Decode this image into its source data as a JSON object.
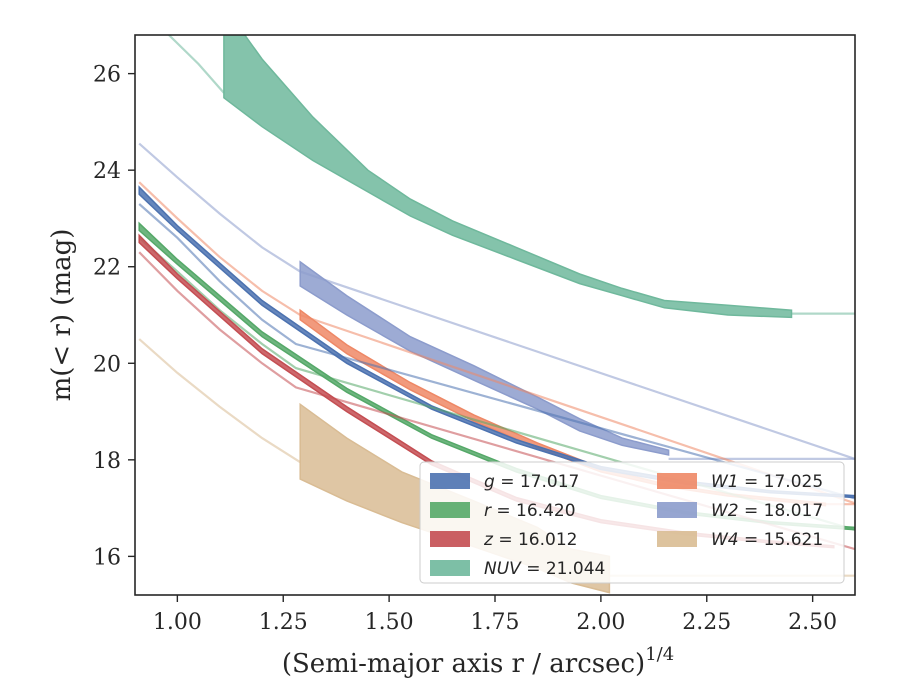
{
  "chart_data": {
    "type": "area",
    "xlabel": "(Semi-major axis r / arcsec)",
    "xlabel_exponent": "1/4",
    "ylabel": "m(< r) (mag)",
    "xlim": [
      0.9,
      2.6
    ],
    "ylim": [
      26.8,
      15.2
    ],
    "y_inverted": true,
    "grid": false,
    "legend_position": "lower-right",
    "x_ticks": [
      "1.00",
      "1.25",
      "1.50",
      "1.75",
      "2.00",
      "2.25",
      "2.50"
    ],
    "y_ticks": [
      "16",
      "18",
      "20",
      "22",
      "24",
      "26"
    ],
    "series": [
      {
        "name": "g = 17.017",
        "color": "#4c72b0",
        "extrap_x": [
          0.91,
          1.0,
          1.1,
          1.2,
          1.28,
          2.6
        ],
        "extrap_y": [
          23.3,
          22.6,
          21.7,
          20.9,
          20.4,
          17.2
        ],
        "band_x": [
          0.91,
          1.0,
          1.2,
          1.4,
          1.6,
          1.8,
          2.0,
          2.2,
          2.4,
          2.6
        ],
        "band_low": [
          23.5,
          22.75,
          21.2,
          20.0,
          19.05,
          18.35,
          17.8,
          17.5,
          17.32,
          17.22
        ],
        "band_high": [
          23.65,
          22.85,
          21.3,
          20.08,
          19.12,
          18.42,
          17.86,
          17.56,
          17.36,
          17.26
        ]
      },
      {
        "name": "r = 16.420",
        "color": "#55a868",
        "extrap_x": [
          0.91,
          1.0,
          1.1,
          1.2,
          1.28,
          2.6
        ],
        "extrap_y": [
          22.6,
          21.9,
          21.1,
          20.4,
          19.9,
          16.55
        ],
        "band_x": [
          0.91,
          1.0,
          1.2,
          1.4,
          1.6,
          1.8,
          2.0,
          2.2,
          2.4,
          2.6
        ],
        "band_low": [
          22.75,
          22.05,
          20.55,
          19.4,
          18.45,
          17.75,
          17.2,
          16.88,
          16.68,
          16.55
        ],
        "band_high": [
          22.9,
          22.15,
          20.65,
          19.48,
          18.52,
          17.82,
          17.26,
          16.93,
          16.72,
          16.6
        ]
      },
      {
        "name": "z = 16.012",
        "color": "#c44e52",
        "extrap_x": [
          0.91,
          1.0,
          1.1,
          1.2,
          1.28,
          2.6
        ],
        "extrap_y": [
          22.3,
          21.5,
          20.7,
          20.0,
          19.5,
          16.15
        ],
        "band_x": [
          0.91,
          1.0,
          1.2,
          1.4,
          1.6,
          1.8,
          2.0,
          2.2,
          2.4,
          2.55
        ],
        "band_low": [
          22.5,
          21.75,
          20.2,
          19.0,
          17.9,
          17.15,
          16.7,
          16.45,
          16.28,
          16.18
        ],
        "band_high": [
          22.65,
          21.85,
          20.3,
          19.1,
          17.98,
          17.22,
          16.76,
          16.5,
          16.32,
          16.22
        ]
      },
      {
        "name": "NUV = 21.044",
        "color": "#6fb89c",
        "extrap_x": [
          0.98,
          1.05,
          1.11
        ],
        "extrap_y": [
          26.8,
          26.2,
          25.6
        ],
        "band_x": [
          1.11,
          1.2,
          1.32,
          1.45,
          1.55,
          1.65,
          1.8,
          1.95,
          2.05,
          2.15,
          2.3,
          2.45
        ],
        "band_low": [
          25.5,
          24.9,
          24.2,
          23.55,
          23.05,
          22.65,
          22.15,
          21.65,
          21.4,
          21.15,
          21.0,
          20.95
        ],
        "band_high": [
          27.4,
          26.3,
          25.1,
          24.0,
          23.4,
          22.95,
          22.4,
          21.85,
          21.55,
          21.3,
          21.2,
          21.1
        ],
        "flat_y": 21.03,
        "flat_x": [
          2.45,
          2.6
        ]
      },
      {
        "name": "W1 = 17.025",
        "color": "#ee8866",
        "extrap_x": [
          0.91,
          1.0,
          1.1,
          1.2,
          1.29,
          2.6
        ],
        "extrap_y": [
          23.75,
          23.0,
          22.2,
          21.5,
          21.0,
          17.1
        ],
        "band_x": [
          1.29,
          1.4,
          1.55,
          1.7,
          1.85,
          2.0,
          2.15,
          2.3,
          2.53
        ],
        "band_low": [
          20.9,
          20.2,
          19.45,
          18.8,
          18.25,
          17.75,
          17.45,
          17.25,
          17.05
        ],
        "band_high": [
          21.1,
          20.38,
          19.6,
          18.93,
          18.35,
          17.83,
          17.5,
          17.3,
          17.1
        ],
        "flat_y": 17.08,
        "flat_x": [
          2.53,
          2.6
        ]
      },
      {
        "name": "W2 = 18.017",
        "color": "#8c9ccc",
        "extrap_x": [
          0.91,
          1.0,
          1.1,
          1.2,
          1.29,
          2.6
        ],
        "extrap_y": [
          24.55,
          23.85,
          23.1,
          22.4,
          21.9,
          18.02
        ],
        "band_x": [
          1.29,
          1.4,
          1.55,
          1.7,
          1.85,
          1.95,
          2.05,
          2.16
        ],
        "band_low": [
          21.6,
          21.0,
          20.25,
          19.65,
          19.05,
          18.6,
          18.3,
          18.1
        ],
        "band_high": [
          22.1,
          21.4,
          20.55,
          19.95,
          19.3,
          18.85,
          18.45,
          18.2
        ],
        "flat_y": 18.02,
        "flat_x": [
          2.16,
          2.6
        ]
      },
      {
        "name": "W4 = 15.621",
        "color": "#d9bc94",
        "extrap_x": [
          0.91,
          1.0,
          1.1,
          1.2,
          1.29
        ],
        "extrap_y": [
          20.5,
          19.8,
          19.1,
          18.45,
          17.95
        ],
        "band_x": [
          1.29,
          1.4,
          1.53,
          1.7,
          1.85,
          1.93,
          2.02
        ],
        "band_low": [
          17.6,
          17.15,
          16.7,
          16.2,
          15.75,
          15.45,
          15.25
        ],
        "band_high": [
          19.15,
          18.45,
          17.75,
          17.15,
          16.6,
          16.15,
          16.0
        ],
        "flat_y": 15.6,
        "flat_x": [
          2.02,
          2.6
        ]
      }
    ]
  }
}
